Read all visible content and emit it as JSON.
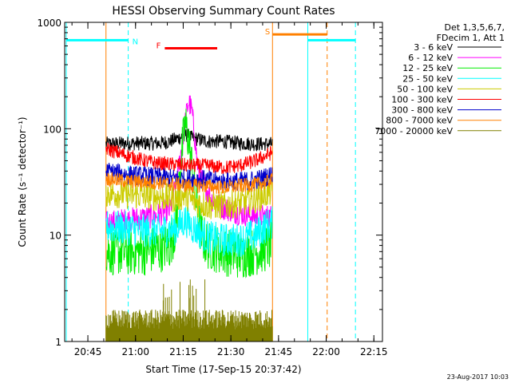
{
  "chart_data": {
    "type": "line",
    "title": "HESSI Observing Summary Count Rates",
    "xlabel": "Start Time (17-Sep-15 20:37:42)",
    "ylabel": "Count Rate (s⁻¹ detector⁻¹)",
    "footer_date": "23-Aug-2017 10:03",
    "x_unit": "minutes since 20:37:42",
    "xlim": [
      0,
      100
    ],
    "ylim": [
      1,
      1000
    ],
    "yscale": "log",
    "x_ticks": [
      {
        "label": "20:45",
        "x": 7.3
      },
      {
        "label": "21:00",
        "x": 22.3
      },
      {
        "label": "21:15",
        "x": 37.3
      },
      {
        "label": "21:30",
        "x": 52.3
      },
      {
        "label": "21:45",
        "x": 67.3
      },
      {
        "label": "22:00",
        "x": 82.3
      },
      {
        "label": "22:15",
        "x": 97.3
      }
    ],
    "y_ticks": [
      {
        "label": "1",
        "y": 1
      },
      {
        "label": "10",
        "y": 10
      },
      {
        "label": "100",
        "y": 100
      },
      {
        "label": "1000",
        "y": 1000
      }
    ],
    "legend": {
      "header": [
        "Det 1,3,5,6,7,",
        "FDecim 1, Att 1"
      ],
      "position": "right"
    },
    "series": [
      {
        "name": "3 - 6 keV",
        "color": "#000000",
        "x": [
          13,
          20,
          30,
          33,
          36,
          38,
          40,
          45,
          50,
          55,
          60,
          63,
          65.4
        ],
        "y": [
          72,
          73,
          73,
          76,
          82,
          88,
          82,
          76,
          76,
          73,
          72,
          72,
          72
        ],
        "noise": 0.03
      },
      {
        "name": "6 - 12 keV",
        "color": "#ff00ff",
        "x": [
          13,
          20,
          28,
          33,
          35,
          37,
          38,
          39,
          40,
          41,
          42,
          44,
          46,
          50,
          55,
          60,
          63,
          65.4
        ],
        "y": [
          13,
          14,
          15,
          17,
          30,
          70,
          120,
          180,
          150,
          80,
          40,
          30,
          22,
          18,
          16,
          15,
          15,
          15
        ],
        "noise": 0.05
      },
      {
        "name": "12 - 25 keV",
        "color": "#00ee00",
        "x": [
          13,
          25,
          30,
          33,
          35,
          36.5,
          38,
          39,
          40,
          41,
          42,
          43,
          45,
          50,
          55,
          60,
          63,
          65.4
        ],
        "y": [
          7,
          7,
          7.5,
          8,
          12,
          50,
          110,
          80,
          45,
          25,
          15,
          10,
          8,
          7,
          6.5,
          7,
          7.5,
          8
        ],
        "noise": 0.1
      },
      {
        "name": "25 - 50 keV",
        "color": "#00ffff",
        "x": [
          13,
          20,
          25,
          30,
          35,
          38,
          40,
          45,
          50,
          55,
          60,
          63,
          65.4
        ],
        "y": [
          12,
          11.5,
          11,
          11,
          11.5,
          14,
          12,
          9.5,
          9,
          9,
          10,
          12,
          13
        ],
        "noise": 0.07
      },
      {
        "name": "50 - 100 keV",
        "color": "#cccc00",
        "x": [
          13,
          20,
          30,
          35,
          38,
          40,
          45,
          50,
          55,
          60,
          63,
          65.4
        ],
        "y": [
          25,
          24,
          23,
          22,
          24,
          21,
          19,
          19,
          20,
          22,
          24,
          26
        ],
        "noise": 0.06
      },
      {
        "name": "100 - 300 keV",
        "color": "#ff0000",
        "x": [
          13,
          18,
          25,
          30,
          35,
          40,
          45,
          50,
          55,
          60,
          63,
          65.4
        ],
        "y": [
          65,
          58,
          50,
          47,
          46,
          45,
          45,
          43,
          45,
          50,
          55,
          60
        ],
        "noise": 0.03
      },
      {
        "name": "300 - 800 keV",
        "color": "#0000cc",
        "x": [
          13,
          20,
          30,
          35,
          40,
          45,
          50,
          55,
          60,
          63,
          65.4
        ],
        "y": [
          40,
          37,
          35,
          34,
          34,
          33,
          32,
          32,
          33,
          35,
          37
        ],
        "noise": 0.04
      },
      {
        "name": "800 - 7000 keV",
        "color": "#ff8000",
        "x": [
          13,
          20,
          30,
          35,
          40,
          45,
          50,
          55,
          60,
          63,
          65.4
        ],
        "y": [
          34,
          32,
          31,
          30,
          29,
          29,
          28,
          29,
          30,
          31,
          33
        ],
        "noise": 0.03
      },
      {
        "name": "7000 - 20000 keV",
        "color": "#808000",
        "x": [
          13,
          65.4
        ],
        "y": [
          1.3,
          1.3
        ],
        "noise": 0.0,
        "style": "spiky"
      }
    ],
    "annotations": {
      "vertical_lines": [
        {
          "x": 0.5,
          "color": "#00ffff",
          "style": "solid"
        },
        {
          "x": 20.0,
          "color": "#00ffff",
          "style": "dashed"
        },
        {
          "x": 13.0,
          "color": "#ff8000",
          "style": "solid"
        },
        {
          "x": 65.4,
          "color": "#ff8000",
          "style": "solid"
        },
        {
          "x": 76.5,
          "color": "#00ffff",
          "style": "solid"
        },
        {
          "x": 82.6,
          "color": "#ff8000",
          "style": "dashed"
        },
        {
          "x": 91.5,
          "color": "#00ffff",
          "style": "dashed"
        }
      ],
      "bars": [
        {
          "label": "N",
          "color": "#00ffff",
          "x0": 0.5,
          "x1": 20.0,
          "y": 680
        },
        {
          "label": "F",
          "color": "#ff0000",
          "x0": 31.5,
          "x1": 48.0,
          "y": 570
        },
        {
          "label": "S",
          "color": "#ff8000",
          "x0": 65.4,
          "x1": 82.6,
          "y": 770
        },
        {
          "label": "",
          "color": "#00ffff",
          "x0": 76.5,
          "x1": 91.5,
          "y": 680
        }
      ]
    }
  }
}
